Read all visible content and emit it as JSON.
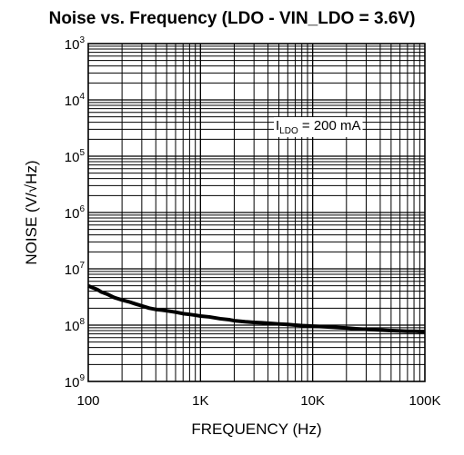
{
  "chart_data": {
    "type": "line",
    "title": "Noise vs. Frequency (LDO - VIN_LDO = 3.6V)",
    "xlabel": "FREQUENCY (Hz)",
    "ylabel": "NOISE (V/√Hz)",
    "x_scale": "log",
    "y_scale": "log",
    "xlim": [
      100,
      100000
    ],
    "ylim": [
      1e-09,
      0.001
    ],
    "x_ticks": [
      "100",
      "1K",
      "10K",
      "100K"
    ],
    "y_tick_mantissa": "10",
    "y_tick_exponents": [
      "3",
      "4",
      "5",
      "6",
      "7",
      "8",
      "9"
    ],
    "grid": true,
    "annotation": {
      "prefix": "I",
      "subscript": "LDO",
      "suffix": " = 200 mA"
    },
    "series": [
      {
        "x": [
          100,
          110,
          120,
          130,
          150,
          170,
          200,
          230,
          260,
          300,
          350,
          400,
          450,
          500,
          600,
          700,
          800,
          900,
          1000,
          1200,
          1500,
          1800,
          2000,
          2500,
          3000,
          3500,
          4000,
          5000,
          6000,
          7000,
          8000,
          10000,
          12000,
          15000,
          18000,
          20000,
          25000,
          30000,
          35000,
          40000,
          50000,
          60000,
          70000,
          80000,
          90000,
          100000
        ],
        "y": [
          5e-08,
          4.6e-08,
          4.3e-08,
          3.9e-08,
          3.5e-08,
          3.1e-08,
          2.8e-08,
          2.6e-08,
          2.4e-08,
          2.2e-08,
          2e-08,
          1.9e-08,
          1.85e-08,
          1.8e-08,
          1.7e-08,
          1.6e-08,
          1.55e-08,
          1.5e-08,
          1.45e-08,
          1.4e-08,
          1.3e-08,
          1.25e-08,
          1.2e-08,
          1.15e-08,
          1.12e-08,
          1.1e-08,
          1.08e-08,
          1.05e-08,
          1.03e-08,
          1e-08,
          9.8e-09,
          9.6e-09,
          9.4e-09,
          9.2e-09,
          9e-09,
          8.9e-09,
          8.6e-09,
          8.4e-09,
          8.3e-09,
          8.2e-09,
          8e-09,
          7.9e-09,
          7.8e-09,
          7.8e-09,
          7.7e-09,
          7.7e-09
        ]
      }
    ]
  }
}
